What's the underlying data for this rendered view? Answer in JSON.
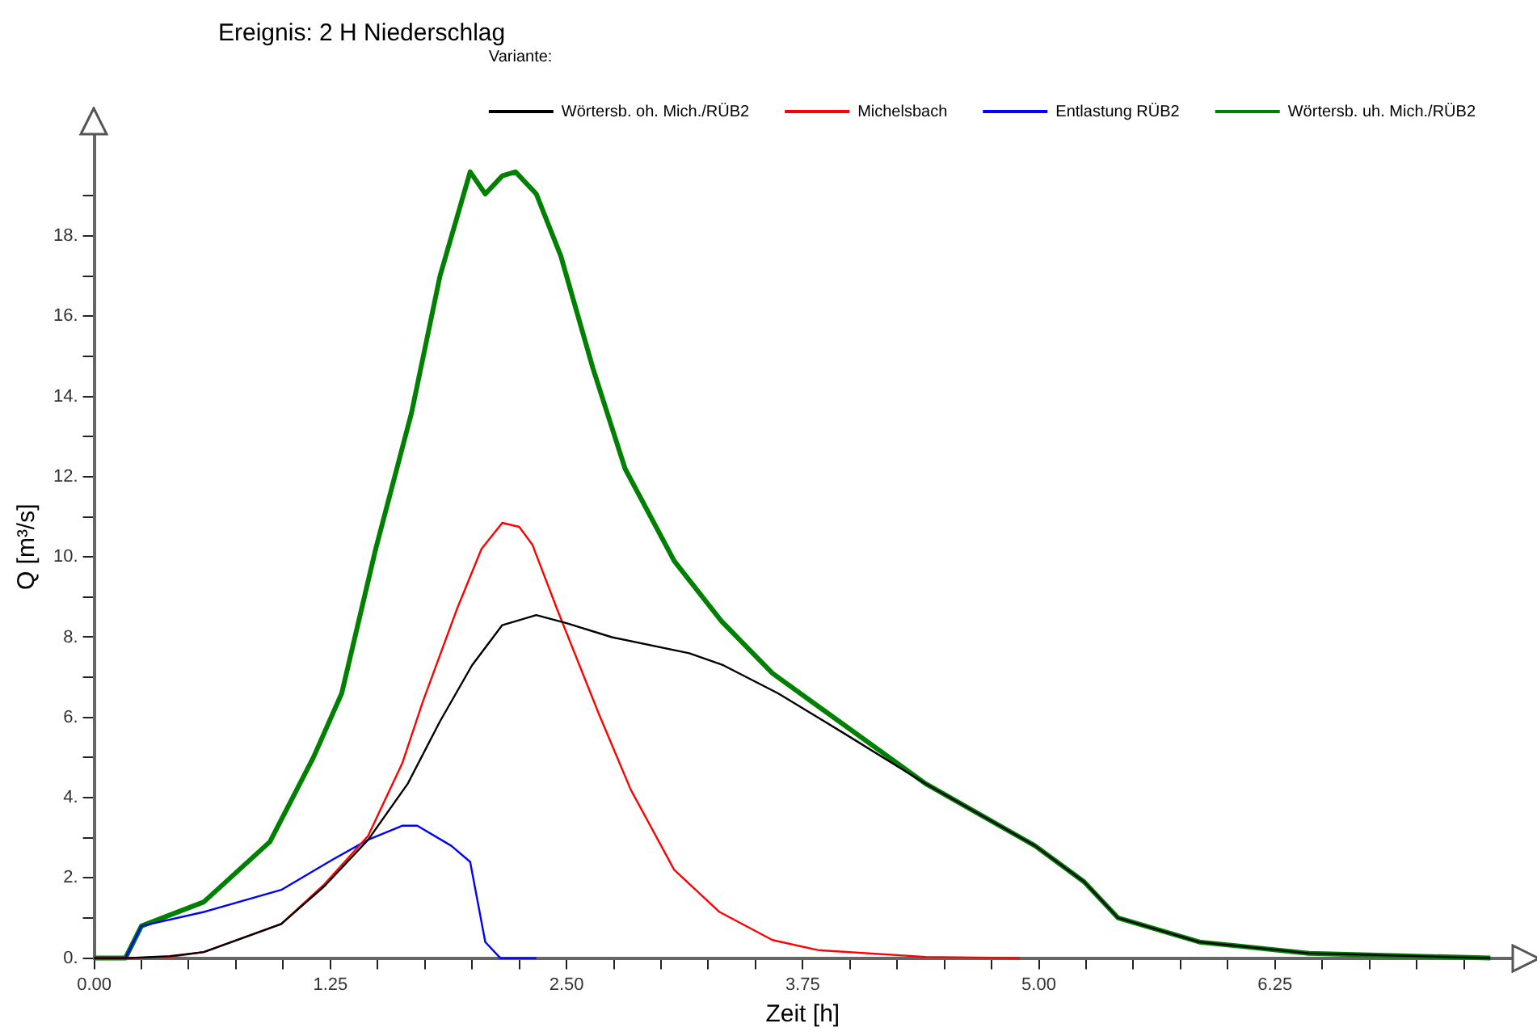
{
  "chart_data": {
    "type": "line",
    "title": "Ereignis: 2 H Niederschlag",
    "xlabel": "Zeit [h]",
    "ylabel": "Q [m³/s]",
    "legend_title": "Variante:",
    "legend": "top right",
    "grid": false,
    "marker": "none",
    "line_style": "solid",
    "xlim": [
      0,
      7.5
    ],
    "ylim": [
      0,
      20.5
    ],
    "xticks": [
      {
        "value": 0,
        "label": "0.00"
      },
      {
        "value": 0.25,
        "label": null
      },
      {
        "value": 0.5,
        "label": null
      },
      {
        "value": 0.75,
        "label": null
      },
      {
        "value": 1,
        "label": null
      },
      {
        "value": 1.25,
        "label": "1.25"
      },
      {
        "value": 1.5,
        "label": null
      },
      {
        "value": 1.75,
        "label": null
      },
      {
        "value": 2,
        "label": null
      },
      {
        "value": 2.25,
        "label": null
      },
      {
        "value": 2.5,
        "label": "2.50"
      },
      {
        "value": 2.75,
        "label": null
      },
      {
        "value": 3,
        "label": null
      },
      {
        "value": 3.25,
        "label": null
      },
      {
        "value": 3.5,
        "label": null
      },
      {
        "value": 3.75,
        "label": "3.75"
      },
      {
        "value": 4,
        "label": null
      },
      {
        "value": 4.25,
        "label": null
      },
      {
        "value": 4.5,
        "label": null
      },
      {
        "value": 4.75,
        "label": null
      },
      {
        "value": 5,
        "label": "5.00"
      },
      {
        "value": 5.25,
        "label": null
      },
      {
        "value": 5.5,
        "label": null
      },
      {
        "value": 5.75,
        "label": null
      },
      {
        "value": 6,
        "label": null
      },
      {
        "value": 6.25,
        "label": "6.25"
      },
      {
        "value": 6.5,
        "label": null
      },
      {
        "value": 6.75,
        "label": null
      },
      {
        "value": 7,
        "label": null
      },
      {
        "value": 7.25,
        "label": null
      }
    ],
    "yticks": [
      {
        "value": 0,
        "label": "0."
      },
      {
        "value": 1,
        "label": null
      },
      {
        "value": 2,
        "label": "2."
      },
      {
        "value": 3,
        "label": null
      },
      {
        "value": 4,
        "label": "4."
      },
      {
        "value": 5,
        "label": null
      },
      {
        "value": 6,
        "label": "6."
      },
      {
        "value": 7,
        "label": null
      },
      {
        "value": 8,
        "label": "8."
      },
      {
        "value": 9,
        "label": null
      },
      {
        "value": 10,
        "label": "10."
      },
      {
        "value": 11,
        "label": null
      },
      {
        "value": 12,
        "label": "12."
      },
      {
        "value": 13,
        "label": null
      },
      {
        "value": 14,
        "label": "14."
      },
      {
        "value": 15,
        "label": null
      },
      {
        "value": 16,
        "label": "16."
      },
      {
        "value": 17,
        "label": null
      },
      {
        "value": 18,
        "label": "18."
      },
      {
        "value": 19,
        "label": null
      }
    ],
    "series": [
      {
        "name": "Wörtersb. oh. Mich./RÜB2",
        "color": "#000000",
        "x": [
          0,
          0.17,
          0.4,
          0.58,
          0.99,
          1.22,
          1.45,
          1.66,
          1.83,
          2.0,
          2.16,
          2.34,
          2.5,
          2.74,
          3.15,
          3.33,
          3.62,
          3.97,
          4.4,
          4.98,
          5.24,
          5.42,
          5.85,
          6.43,
          7.39
        ],
        "values": [
          0,
          0,
          0.05,
          0.15,
          0.85,
          1.8,
          2.95,
          4.35,
          5.9,
          7.3,
          8.3,
          8.55,
          8.35,
          8.0,
          7.6,
          7.3,
          6.6,
          5.6,
          4.35,
          2.8,
          1.9,
          1.0,
          0.4,
          0.12,
          0
        ]
      },
      {
        "name": "Michelsbach",
        "color": "#ff0000",
        "x": [
          0,
          0.17,
          0.4,
          0.58,
          0.99,
          1.22,
          1.45,
          1.63,
          1.74,
          1.92,
          2.05,
          2.16,
          2.25,
          2.32,
          2.45,
          2.67,
          2.84,
          3.07,
          3.31,
          3.59,
          3.83,
          4.4,
          4.9
        ],
        "values": [
          0,
          0,
          0.03,
          0.15,
          0.85,
          1.85,
          3.05,
          4.85,
          6.4,
          8.7,
          10.2,
          10.85,
          10.75,
          10.3,
          8.7,
          6.1,
          4.2,
          2.2,
          1.15,
          0.45,
          0.2,
          0.03,
          0
        ]
      },
      {
        "name": "Entlastung RÜB2",
        "color": "#0000ff",
        "x": [
          0,
          0.165,
          0.25,
          0.58,
          0.99,
          1.26,
          1.45,
          1.63,
          1.71,
          1.89,
          1.99,
          2.07,
          2.15,
          2.34
        ],
        "values": [
          0,
          0,
          0.8,
          1.15,
          1.7,
          2.45,
          2.95,
          3.3,
          3.3,
          2.8,
          2.4,
          0.4,
          0,
          0
        ]
      },
      {
        "name": "Wörtersb. uh. Mich./RÜB2",
        "color": "#008000",
        "x": [
          0,
          0.165,
          0.25,
          0.58,
          0.93,
          1.16,
          1.31,
          1.49,
          1.68,
          1.83,
          1.99,
          2.07,
          2.16,
          2.23,
          2.34,
          2.47,
          2.64,
          2.81,
          3.07,
          3.32,
          3.59,
          4.4,
          4.98,
          5.24,
          5.42,
          5.85,
          6.43,
          7.39
        ],
        "values": [
          0,
          0,
          0.8,
          1.4,
          2.9,
          5.0,
          6.6,
          10.2,
          13.6,
          17.0,
          19.6,
          19.05,
          19.5,
          19.6,
          19.05,
          17.5,
          14.7,
          12.2,
          9.9,
          8.4,
          7.1,
          4.35,
          2.8,
          1.9,
          1.0,
          0.4,
          0.12,
          0
        ]
      }
    ]
  }
}
